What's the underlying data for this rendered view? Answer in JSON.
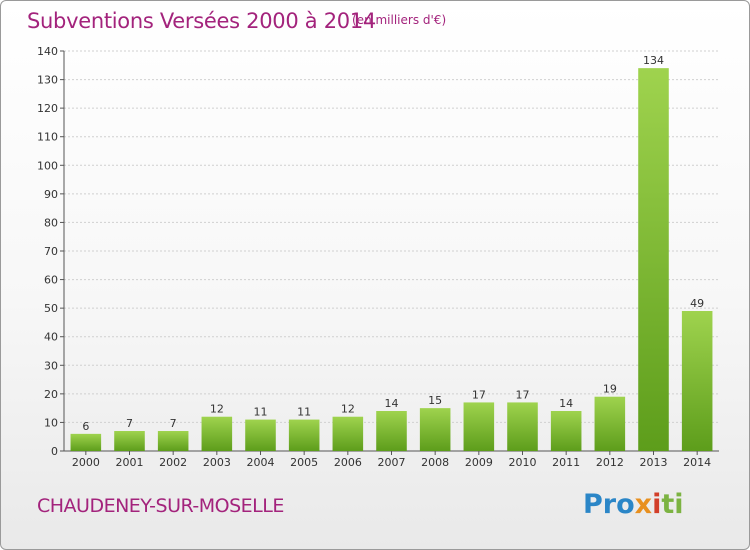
{
  "title": "Subventions Versées 2000 à 2014",
  "subtitle": "(en milliers d'€)",
  "commune": "CHAUDENEY-SUR-MOSELLE",
  "logo": {
    "p1": "Pro",
    "p2": "x",
    "p3": "i",
    "p4": "ti"
  },
  "colors": {
    "accent": "#a3237c",
    "bar_top": "#9fd34e",
    "bar_bottom": "#5d9d1b",
    "grid": "#d0d0d0"
  },
  "chart_data": {
    "type": "bar",
    "categories": [
      "2000",
      "2001",
      "2002",
      "2003",
      "2004",
      "2005",
      "2006",
      "2007",
      "2008",
      "2009",
      "2010",
      "2011",
      "2012",
      "2013",
      "2014"
    ],
    "values": [
      6,
      7,
      7,
      12,
      11,
      11,
      12,
      14,
      15,
      17,
      17,
      14,
      19,
      134,
      49
    ],
    "title": "Subventions Versées 2000 à 2014",
    "ylabel": "",
    "xlabel": "",
    "ylim": [
      0,
      140
    ],
    "yticks": [
      0,
      10,
      20,
      30,
      40,
      50,
      60,
      70,
      80,
      90,
      100,
      110,
      120,
      130,
      140
    ],
    "grid": true,
    "legend": "none"
  }
}
